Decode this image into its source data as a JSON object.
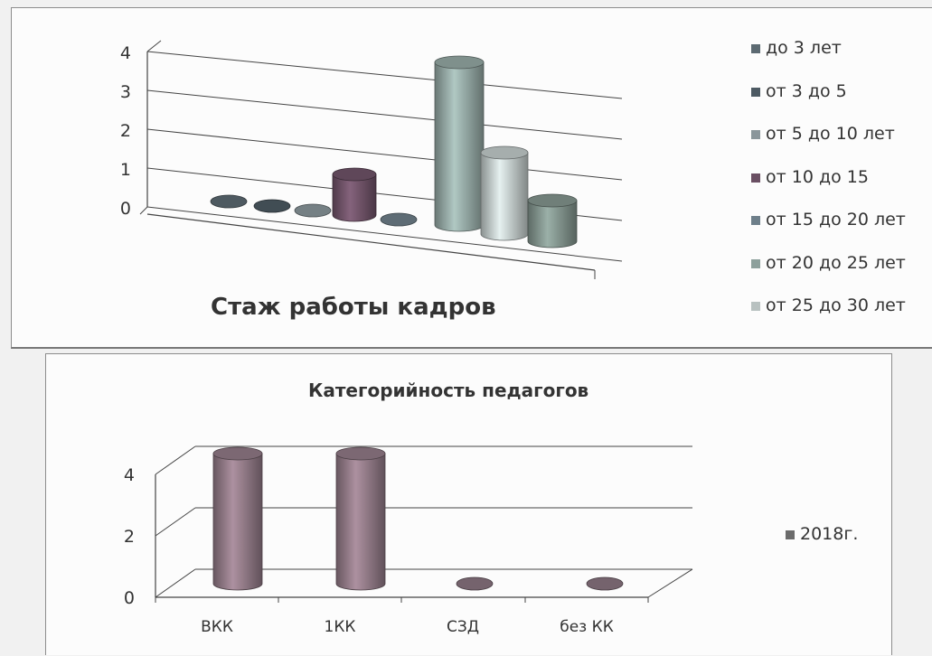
{
  "chart_data": [
    {
      "type": "bar",
      "title": "Стаж работы кадров",
      "series": [
        {
          "name": "до 3 лет",
          "values": [
            0
          ]
        },
        {
          "name": "от 3 до 5",
          "values": [
            0
          ]
        },
        {
          "name": "от 5 до 10 лет",
          "values": [
            0
          ]
        },
        {
          "name": "от 10 до 15",
          "values": [
            1
          ]
        },
        {
          "name": "от 15 до 20 лет",
          "values": [
            0
          ]
        },
        {
          "name": "от 20 до 25 лет",
          "values": [
            4
          ]
        },
        {
          "name": "от 25 до 30 лет",
          "values": [
            2
          ]
        },
        {
          "name": "",
          "values": [
            1
          ]
        }
      ],
      "ylim": [
        0,
        4
      ],
      "yticks": [
        "0",
        "1",
        "2",
        "3",
        "4"
      ],
      "grid": true,
      "legend": "right",
      "colors": [
        "#5c6a72",
        "#4d5a63",
        "#8a969b",
        "#6a4f63",
        "#6e7f8a",
        "#8da09c",
        "#b8c1c0",
        "#7c8d86"
      ]
    },
    {
      "type": "bar",
      "title": "Категорийность педагогов",
      "categories": [
        "ВКК",
        "1КК",
        "СЗД",
        "без КК"
      ],
      "series": [
        {
          "name": "2018г.",
          "values": [
            4,
            4,
            0,
            0
          ]
        }
      ],
      "ylim": [
        0,
        4
      ],
      "yticks": [
        "0",
        "2",
        "4"
      ],
      "grid": true,
      "legend": "right",
      "color": "#8a7480"
    }
  ]
}
